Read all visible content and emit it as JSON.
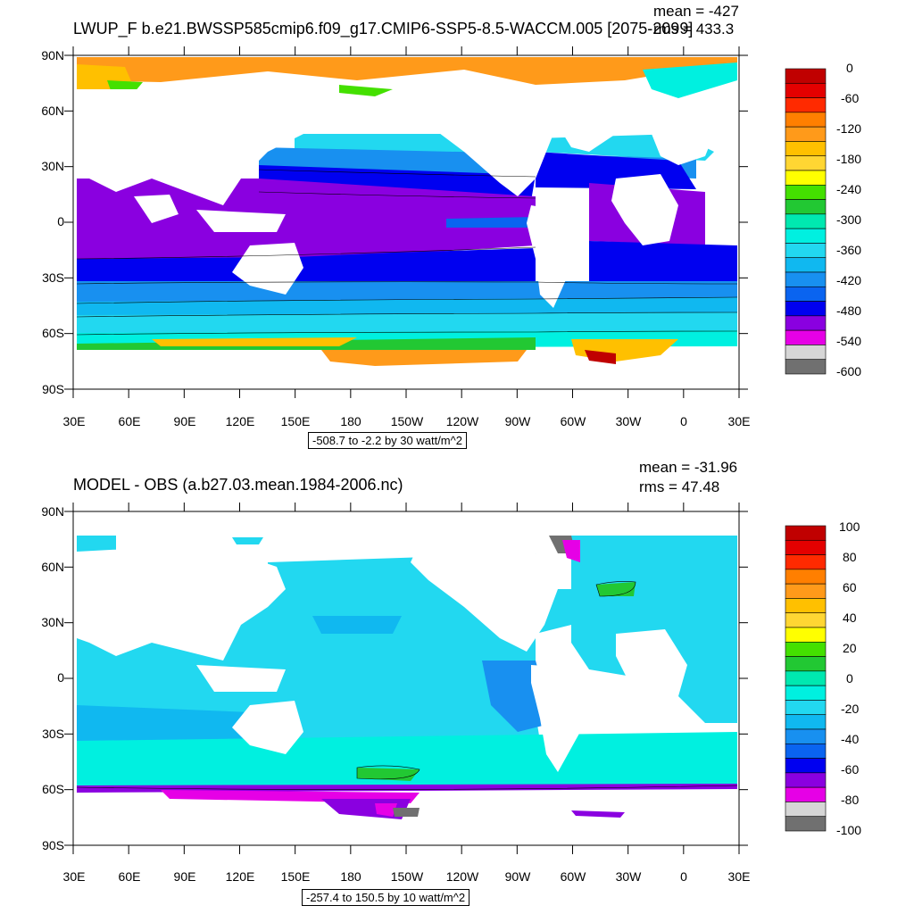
{
  "panels": [
    {
      "id": "top",
      "title": "LWUP_F b.e21.BWSSP585cmip6.f09_g17.CMIP6-SSP5-8.5-WACCM.005 [2075-2099]",
      "mean_label": "mean = -427",
      "rms_label": "rms = 433.3",
      "subtitle": "-508.7 to -2.2 by 30 watt/m^2",
      "lat_ticks": [
        "90N",
        "60N",
        "30N",
        "0",
        "30S",
        "60S",
        "90S"
      ],
      "lon_ticks": [
        "30E",
        "60E",
        "90E",
        "120E",
        "150E",
        "180",
        "150W",
        "120W",
        "90W",
        "60W",
        "30W",
        "0",
        "30E"
      ],
      "colorbar": {
        "labels": [
          "0",
          "-60",
          "-120",
          "-180",
          "-240",
          "-300",
          "-360",
          "-420",
          "-480",
          "-540",
          "-600"
        ],
        "colors": [
          "#c00000",
          "#e40000",
          "#ff2a00",
          "#ff7f00",
          "#ff9a1a",
          "#ffc000",
          "#ffd633",
          "#ffff00",
          "#44e000",
          "#22c833",
          "#00e8b0",
          "#00f0e0",
          "#22d8f0",
          "#10b8f0",
          "#1890f0",
          "#0a64f0",
          "#0000f0",
          "#8a00e0",
          "#e600e6",
          "#d6d6d6",
          "#707070"
        ]
      }
    },
    {
      "id": "bottom",
      "title": "MODEL - OBS (a.b27.03.mean.1984-2006.nc)",
      "mean_label": "mean = -31.96",
      "rms_label": "rms = 47.48",
      "subtitle": "-257.4 to 150.5 by 10 watt/m^2",
      "lat_ticks": [
        "90N",
        "60N",
        "30N",
        "0",
        "30S",
        "60S",
        "90S"
      ],
      "lon_ticks": [
        "30E",
        "60E",
        "90E",
        "120E",
        "150E",
        "180",
        "150W",
        "120W",
        "90W",
        "60W",
        "30W",
        "0",
        "30E"
      ],
      "colorbar": {
        "labels": [
          "100",
          "80",
          "60",
          "40",
          "20",
          "0",
          "-20",
          "-40",
          "-60",
          "-80",
          "-100"
        ],
        "colors": [
          "#c00000",
          "#e40000",
          "#ff2a00",
          "#ff7f00",
          "#ff9a1a",
          "#ffc000",
          "#ffd633",
          "#ffff00",
          "#44e000",
          "#22c833",
          "#00e8b0",
          "#00f0e0",
          "#22d8f0",
          "#10b8f0",
          "#1890f0",
          "#0a64f0",
          "#0000f0",
          "#8a00e0",
          "#e600e6",
          "#d6d6d6",
          "#707070"
        ]
      }
    }
  ],
  "colors": {
    "land": "#ffffff",
    "purple_band": "#8a00e0",
    "blue_band": "#0000f0",
    "mid_blue": "#1890f0",
    "light_blue": "#22d8f0",
    "cyan": "#00f0e0",
    "orange_polar": "#ff9a1a",
    "diff_ocean": "#22d8f0",
    "diff_ocean2": "#10b8f0"
  }
}
